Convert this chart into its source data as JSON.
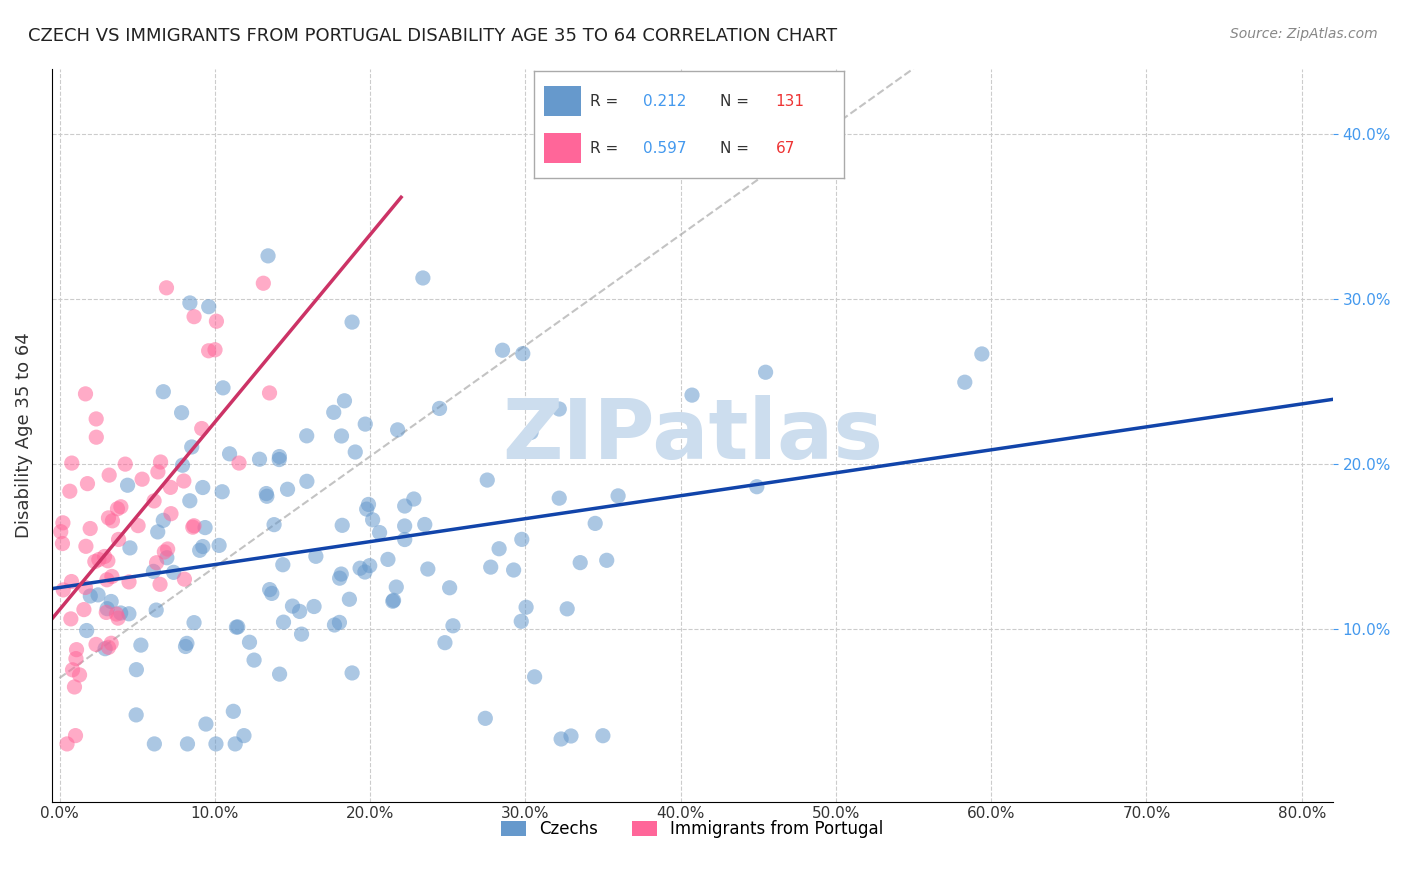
{
  "title": "CZECH VS IMMIGRANTS FROM PORTUGAL DISABILITY AGE 35 TO 64 CORRELATION CHART",
  "source": "Source: ZipAtlas.com",
  "xlabel_ticks": [
    "0.0%",
    "10.0%",
    "20.0%",
    "30.0%",
    "40.0%",
    "50.0%",
    "60.0%",
    "70.0%",
    "80.0%"
  ],
  "xlabel_vals": [
    0.0,
    0.1,
    0.2,
    0.3,
    0.4,
    0.5,
    0.6,
    0.7,
    0.8
  ],
  "ylabel": "Disability Age 35 to 64",
  "ylabel_ticks": [
    "10.0%",
    "20.0%",
    "30.0%",
    "40.0%"
  ],
  "ylabel_vals": [
    0.1,
    0.2,
    0.3,
    0.4
  ],
  "xlim": [
    -0.005,
    0.82
  ],
  "ylim": [
    -0.005,
    0.44
  ],
  "czechs_R": 0.212,
  "czechs_N": 131,
  "portugal_R": 0.597,
  "portugal_N": 67,
  "blue_color": "#6699CC",
  "pink_color": "#FF6699",
  "blue_line_color": "#1144AA",
  "pink_line_color": "#CC3366",
  "watermark": "ZIPatlas",
  "watermark_color": "#CCDDEE",
  "legend_box_color": "#FFFFFF",
  "background_color": "#FFFFFF",
  "grid_color": "#CCCCCC",
  "seed": 42
}
